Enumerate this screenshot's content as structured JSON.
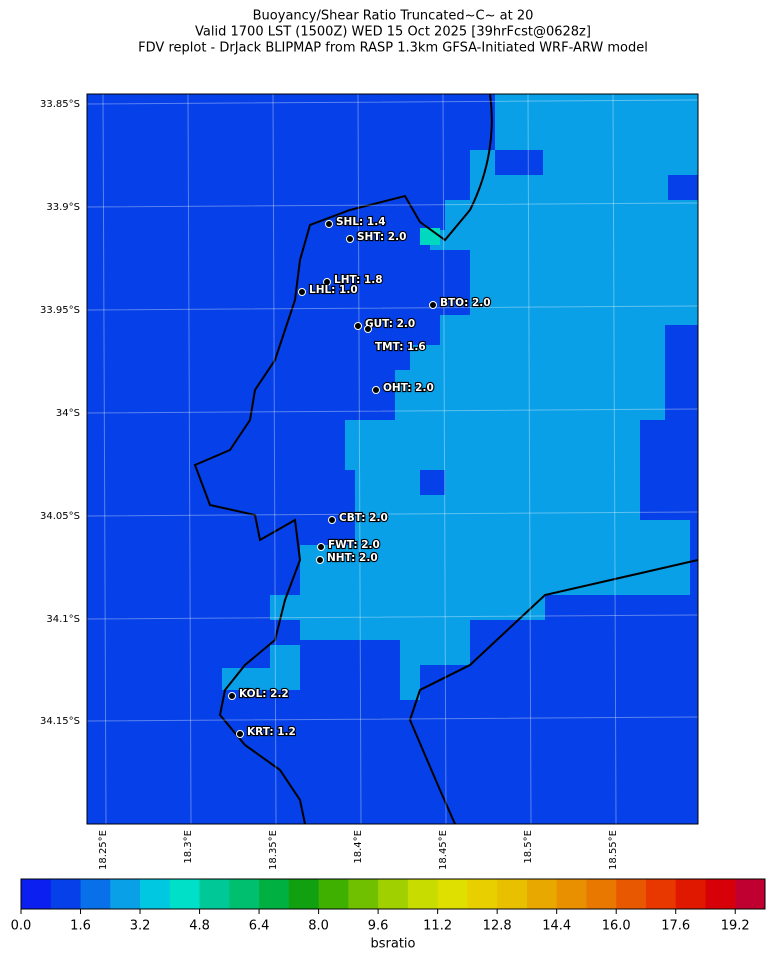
{
  "title_lines": [
    "Buoyancy/Shear Ratio Truncated~C~    at 20",
    "Valid 1700 LST (1500Z) WED 15 Oct 2025 [39hrFcst@0628z]",
    "FDV replot - DrJack BLIPMAP from RASP 1.3km GFSA-Initiated WRF-ARW model"
  ],
  "lat_labels": [
    "33.85°S",
    "33.9°S",
    "33.95°S",
    "34°S",
    "34.05°S",
    "34.1°S",
    "34.15°S"
  ],
  "lon_labels": [
    "18.25°E",
    "18.3°E",
    "18.35°E",
    "18.4°E",
    "18.45°E",
    "18.5°E",
    "18.55°E"
  ],
  "stations": [
    "SHL: 1.4",
    "SHT: 2.0",
    "LHT: 1.8",
    "LHL: 1.0",
    "BTO: 2.0",
    "GUT: 2.0",
    "TMT: 1.6",
    "OHT: 2.0",
    "CBT: 2.0",
    "FWT: 2.0",
    "NHT: 2.0",
    "KOL: 2.2",
    "KRT: 1.2"
  ],
  "colorbar": {
    "label": "bsratio",
    "range": [
      0,
      20
    ],
    "colors": [
      "#0a1ff0",
      "#0540e8",
      "#0870e8",
      "#09a0e8",
      "#00c8e0",
      "#00e0c8",
      "#00c896",
      "#00c070",
      "#00b040",
      "#10a010",
      "#40b000",
      "#70c000",
      "#a0d000",
      "#c8dc00",
      "#e0e000",
      "#e8d000",
      "#e8c000",
      "#e8a800",
      "#e89000",
      "#e87800",
      "#e85800",
      "#e83800",
      "#e01800",
      "#d80008",
      "#c00030"
    ],
    "ticks": [
      {
        "value": 0,
        "label": "0.0"
      },
      1.6,
      3.2,
      4.8,
      6.4,
      {
        "value": 8,
        "label": "8.0"
      },
      9.6,
      11.2,
      12.8,
      14.4,
      {
        "value": 16,
        "label": "16.0"
      },
      17.6,
      19.2
    ]
  }
}
